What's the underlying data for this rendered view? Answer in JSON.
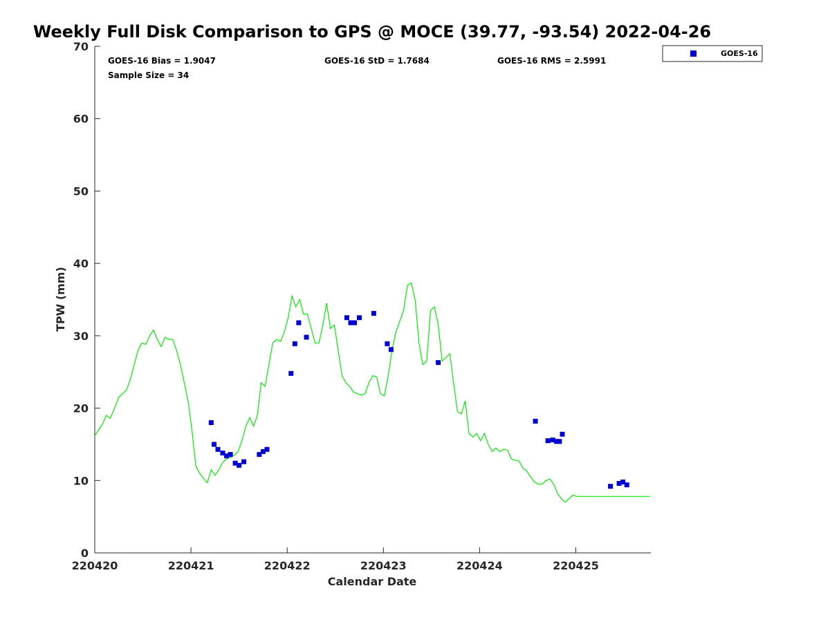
{
  "chart_data": {
    "type": "scatter",
    "title": "Weekly Full Disk Comparison to GPS @ MOCE (39.77, -93.54) 2022-04-26",
    "xlabel": "Calendar Date",
    "ylabel": "TPW (mm)",
    "xlim": [
      0,
      5.78
    ],
    "ylim": [
      0,
      70
    ],
    "x_tick_values": [
      0,
      1,
      2,
      3,
      4,
      5
    ],
    "x_tick_labels": [
      "220420",
      "220421",
      "220422",
      "220423",
      "220424",
      "220425"
    ],
    "y_tick_values": [
      0,
      10,
      20,
      30,
      40,
      50,
      60,
      70
    ],
    "y_tick_labels": [
      "0",
      "10",
      "20",
      "30",
      "40",
      "50",
      "60",
      "70"
    ],
    "grid": false,
    "legend_position": "top-right",
    "stats": {
      "bias": "GOES-16 Bias = 1.9047",
      "std": "GOES-16 StD = 1.7684",
      "rms": "GOES-16 RMS = 2.5991",
      "sample_size": "Sample Size = 34"
    },
    "series": [
      {
        "name": "GOES-16",
        "kind": "scatter",
        "marker": "square",
        "color": "#0000d0",
        "x": [
          1.21,
          1.24,
          1.28,
          1.33,
          1.37,
          1.41,
          1.46,
          1.5,
          1.55,
          1.71,
          1.75,
          1.79,
          2.04,
          2.08,
          2.12,
          2.2,
          2.62,
          2.66,
          2.7,
          2.75,
          2.9,
          3.04,
          3.08,
          3.57,
          4.58,
          4.71,
          4.76,
          4.8,
          4.83,
          4.86,
          5.36,
          5.45,
          5.49,
          5.53
        ],
        "y": [
          18.0,
          15.0,
          14.3,
          13.8,
          13.4,
          13.6,
          12.4,
          12.1,
          12.6,
          13.6,
          14.0,
          14.3,
          24.8,
          28.9,
          31.8,
          29.8,
          32.5,
          31.8,
          31.8,
          32.5,
          33.1,
          28.9,
          28.1,
          26.3,
          18.2,
          15.5,
          15.6,
          15.4,
          15.4,
          16.4,
          9.2,
          9.6,
          9.8,
          9.4
        ]
      },
      {
        "name": "GPS",
        "kind": "line",
        "color": "#00ee00",
        "x": [
          0.0,
          0.04,
          0.08,
          0.12,
          0.16,
          0.2,
          0.25,
          0.29,
          0.33,
          0.37,
          0.41,
          0.45,
          0.49,
          0.53,
          0.57,
          0.61,
          0.65,
          0.69,
          0.73,
          0.77,
          0.81,
          0.85,
          0.89,
          0.93,
          0.97,
          1.01,
          1.05,
          1.09,
          1.13,
          1.17,
          1.21,
          1.25,
          1.29,
          1.33,
          1.37,
          1.41,
          1.45,
          1.49,
          1.53,
          1.57,
          1.61,
          1.65,
          1.69,
          1.73,
          1.77,
          1.81,
          1.85,
          1.89,
          1.93,
          1.97,
          2.01,
          2.05,
          2.09,
          2.13,
          2.17,
          2.21,
          2.25,
          2.29,
          2.33,
          2.37,
          2.41,
          2.45,
          2.49,
          2.53,
          2.57,
          2.61,
          2.65,
          2.69,
          2.73,
          2.77,
          2.81,
          2.85,
          2.89,
          2.93,
          2.97,
          3.01,
          3.05,
          3.09,
          3.13,
          3.17,
          3.21,
          3.25,
          3.29,
          3.33,
          3.37,
          3.41,
          3.45,
          3.49,
          3.53,
          3.57,
          3.61,
          3.65,
          3.69,
          3.73,
          3.77,
          3.81,
          3.85,
          3.89,
          3.93,
          3.97,
          4.01,
          4.05,
          4.09,
          4.13,
          4.17,
          4.21,
          4.25,
          4.29,
          4.33,
          4.37,
          4.41,
          4.45,
          4.49,
          4.53,
          4.57,
          4.61,
          4.65,
          4.69,
          4.73,
          4.77,
          4.81,
          4.85,
          4.89,
          4.93,
          4.97,
          5.01,
          5.05,
          5.09,
          5.13,
          5.17,
          5.21,
          5.25,
          5.29,
          5.33,
          5.37,
          5.41,
          5.45,
          5.49,
          5.53,
          5.57,
          5.61,
          5.65,
          5.69,
          5.73,
          5.77
        ],
        "y": [
          16.2,
          17.0,
          17.8,
          19.0,
          18.6,
          19.8,
          21.5,
          22.0,
          22.5,
          24.0,
          26.0,
          28.0,
          29.0,
          28.8,
          30.0,
          30.8,
          29.5,
          28.5,
          29.8,
          29.5,
          29.5,
          28.0,
          26.0,
          23.5,
          21.0,
          17.0,
          12.0,
          11.0,
          10.3,
          9.7,
          11.5,
          10.7,
          11.5,
          12.5,
          13.0,
          13.2,
          13.5,
          14.0,
          15.5,
          17.5,
          18.7,
          17.5,
          19.0,
          23.5,
          23.0,
          26.0,
          29.0,
          29.5,
          29.2,
          30.5,
          32.5,
          35.5,
          34.0,
          35.0,
          33.0,
          33.0,
          31.0,
          29.0,
          29.0,
          31.5,
          34.5,
          31.0,
          31.5,
          28.0,
          24.5,
          23.5,
          23.0,
          22.2,
          22.0,
          21.8,
          22.0,
          23.5,
          24.5,
          24.3,
          22.0,
          21.7,
          24.5,
          28.0,
          30.5,
          32.0,
          33.5,
          37.0,
          37.3,
          35.0,
          29.0,
          26.0,
          26.5,
          33.5,
          34.0,
          31.5,
          26.5,
          27.0,
          27.5,
          23.5,
          19.5,
          19.2,
          21.0,
          16.5,
          16.0,
          16.5,
          15.5,
          16.5,
          15.0,
          14.0,
          14.5,
          14.0,
          14.3,
          14.2,
          13.0,
          12.8,
          12.7,
          11.7,
          11.3,
          10.5,
          9.8,
          9.5,
          9.5,
          10.0,
          10.2,
          9.5,
          8.2,
          7.5,
          7.0,
          7.5,
          8.0,
          7.8,
          7.8,
          7.8,
          7.8,
          7.8,
          7.8,
          7.8,
          7.8,
          7.8,
          7.8,
          7.8,
          7.8,
          7.8,
          7.8,
          7.8,
          7.8,
          7.8,
          7.8,
          7.8,
          7.8
        ]
      }
    ]
  }
}
